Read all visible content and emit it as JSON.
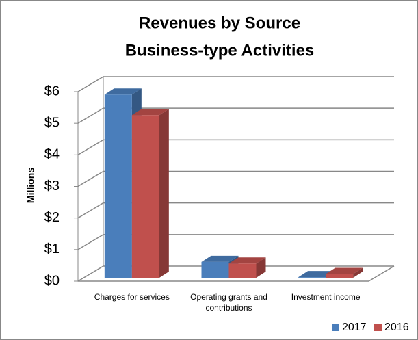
{
  "chart_data": {
    "type": "bar3d",
    "title": "Revenues by Source",
    "subtitle": "Business-type Activities",
    "y_label": "Millions",
    "categories": [
      "Charges for services",
      "Operating grants and contributions",
      "Investment income"
    ],
    "series": [
      {
        "name": "2017",
        "color": "#4a7ebb",
        "values": [
          5.8,
          0.5,
          0.02
        ]
      },
      {
        "name": "2016",
        "color": "#c0504d",
        "values": [
          5.15,
          0.45,
          0.12
        ]
      }
    ],
    "ylim": [
      0,
      6
    ],
    "yticks": [
      {
        "value": 0,
        "label": "$0"
      },
      {
        "value": 1,
        "label": "$1"
      },
      {
        "value": 2,
        "label": "$2"
      },
      {
        "value": 3,
        "label": "$3"
      },
      {
        "value": 4,
        "label": "$4"
      },
      {
        "value": 5,
        "label": "$5"
      },
      {
        "value": 6,
        "label": "$6"
      }
    ],
    "grid": true,
    "legend": "bottom-right"
  }
}
